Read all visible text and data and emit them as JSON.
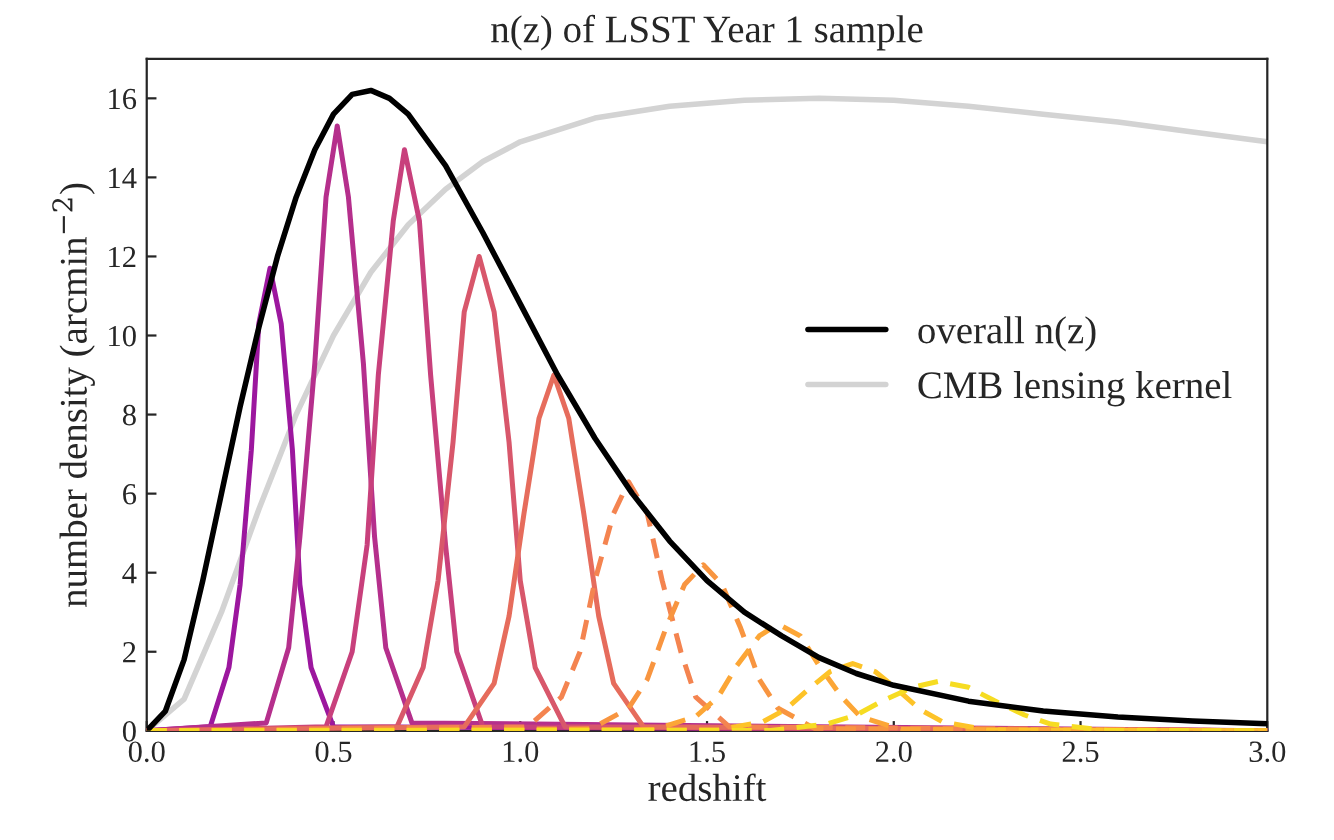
{
  "chart_data": {
    "type": "line",
    "title": "n(z) of LSST Year 1 sample",
    "xlabel": "redshift",
    "ylabel": "number density (arcmin$^{−2}$)",
    "xlim": [
      0.0,
      3.0
    ],
    "ylim": [
      0,
      17
    ],
    "xticks": [
      {
        "value": 0,
        "label": "0.0"
      },
      0.5,
      {
        "value": 1,
        "label": "1.0"
      },
      1.5,
      {
        "value": 2,
        "label": "2.0"
      },
      2.5,
      {
        "value": 3,
        "label": "3.0"
      }
    ],
    "yticks": [
      0,
      2,
      4,
      6,
      8,
      10,
      12,
      14,
      16
    ],
    "grid": false,
    "legend": "right",
    "marker": "none",
    "series": [
      {
        "color": "#9c179e",
        "line_style": "solid",
        "x": [
          0,
          0.17,
          0.22,
          0.25,
          0.28,
          0.3,
          0.33,
          0.36,
          0.39,
          0.41,
          0.44,
          0.5,
          3.0
        ],
        "values": [
          0,
          0.1,
          1.6,
          3.7,
          7.1,
          10.3,
          11.7,
          10.3,
          7.1,
          3.7,
          1.6,
          0.1,
          0
        ]
      },
      {
        "color": "#b52f8c",
        "line_style": "solid",
        "x": [
          0,
          0.32,
          0.38,
          0.41,
          0.45,
          0.48,
          0.51,
          0.54,
          0.58,
          0.61,
          0.64,
          0.71,
          3.0
        ],
        "values": [
          0,
          0.2,
          2.1,
          4.9,
          9.3,
          13.5,
          15.3,
          13.5,
          9.3,
          4.9,
          2.1,
          0.2,
          0
        ]
      },
      {
        "color": "#c8407c",
        "line_style": "solid",
        "x": [
          0,
          0.48,
          0.55,
          0.59,
          0.62,
          0.66,
          0.69,
          0.73,
          0.76,
          0.8,
          0.83,
          0.9,
          3.0
        ],
        "values": [
          0,
          0.1,
          2.0,
          4.7,
          9.0,
          12.9,
          14.7,
          12.9,
          9.0,
          4.7,
          2.0,
          0.1,
          0
        ]
      },
      {
        "color": "#d8576b",
        "line_style": "solid",
        "x": [
          0,
          0.67,
          0.74,
          0.78,
          0.82,
          0.85,
          0.89,
          0.93,
          0.97,
          1.0,
          1.04,
          1.12,
          3.0
        ],
        "values": [
          0,
          0.1,
          1.6,
          3.8,
          7.3,
          10.6,
          12.0,
          10.6,
          7.3,
          3.8,
          1.6,
          0.1,
          0
        ]
      },
      {
        "color": "#e66c5c",
        "line_style": "solid",
        "x": [
          0,
          0.85,
          0.93,
          0.97,
          1.01,
          1.05,
          1.09,
          1.13,
          1.17,
          1.21,
          1.25,
          1.33,
          3.0
        ],
        "values": [
          0,
          0.1,
          1.2,
          2.9,
          5.5,
          7.9,
          9.0,
          7.9,
          5.5,
          2.9,
          1.2,
          0.1,
          0
        ]
      },
      {
        "color": "#f48450",
        "line_style": "dashed",
        "x": [
          0,
          1.02,
          1.11,
          1.16,
          1.2,
          1.25,
          1.29,
          1.34,
          1.38,
          1.43,
          1.47,
          1.56,
          3.0
        ],
        "values": [
          0,
          0.1,
          0.85,
          2.0,
          3.8,
          5.5,
          6.3,
          5.5,
          3.8,
          2.0,
          0.85,
          0.1,
          0
        ]
      },
      {
        "color": "#f89540",
        "line_style": "dashed",
        "x": [
          0,
          1.19,
          1.29,
          1.34,
          1.39,
          1.44,
          1.49,
          1.54,
          1.59,
          1.64,
          1.69,
          1.79,
          3.0
        ],
        "values": [
          0,
          0.05,
          0.57,
          1.3,
          2.6,
          3.7,
          4.2,
          3.7,
          2.6,
          1.3,
          0.57,
          0.05,
          0
        ]
      },
      {
        "color": "#fca636",
        "line_style": "dashed",
        "x": [
          0,
          1.36,
          1.47,
          1.53,
          1.58,
          1.64,
          1.69,
          1.75,
          1.8,
          1.86,
          1.91,
          2.02,
          3.0
        ],
        "values": [
          0,
          0.03,
          0.36,
          0.86,
          1.65,
          2.4,
          2.7,
          2.4,
          1.65,
          0.86,
          0.36,
          0.03,
          0
        ]
      },
      {
        "color": "#fdc328",
        "line_style": "dashed",
        "x": [
          0,
          1.53,
          1.65,
          1.71,
          1.77,
          1.83,
          1.89,
          1.95,
          2.01,
          2.07,
          2.13,
          2.25,
          3.0
        ],
        "values": [
          0,
          0.02,
          0.23,
          0.54,
          1.04,
          1.5,
          1.7,
          1.5,
          1.04,
          0.54,
          0.23,
          0.02,
          0
        ]
      },
      {
        "color": "#f6dc22",
        "line_style": "dashed",
        "x": [
          0,
          1.67,
          1.82,
          1.9,
          1.97,
          2.05,
          2.12,
          2.2,
          2.27,
          2.35,
          2.42,
          2.57,
          3.0
        ],
        "values": [
          0,
          0.01,
          0.17,
          0.4,
          0.76,
          1.1,
          1.25,
          1.1,
          0.76,
          0.4,
          0.17,
          0.01,
          0
        ]
      },
      {
        "name": "overall n(z)",
        "color": "#000000",
        "line_style": "solid",
        "x": [
          0,
          0.05,
          0.1,
          0.15,
          0.2,
          0.25,
          0.3,
          0.35,
          0.4,
          0.45,
          0.5,
          0.55,
          0.6,
          0.65,
          0.7,
          0.8,
          0.9,
          1.0,
          1.1,
          1.2,
          1.3,
          1.4,
          1.5,
          1.6,
          1.7,
          1.8,
          1.9,
          2.0,
          2.2,
          2.4,
          2.6,
          2.8,
          3.0
        ],
        "values": [
          0,
          0.5,
          1.8,
          3.8,
          6.0,
          8.2,
          10.2,
          12.0,
          13.5,
          14.7,
          15.6,
          16.1,
          16.2,
          16.0,
          15.6,
          14.3,
          12.6,
          10.8,
          9.0,
          7.4,
          6.0,
          4.8,
          3.8,
          3.0,
          2.4,
          1.85,
          1.45,
          1.15,
          0.75,
          0.5,
          0.35,
          0.25,
          0.18
        ]
      },
      {
        "name": "CMB lensing kernel",
        "color": "#d3d3d3",
        "line_style": "solid",
        "x": [
          0,
          0.1,
          0.2,
          0.3,
          0.4,
          0.5,
          0.6,
          0.7,
          0.8,
          0.9,
          1.0,
          1.2,
          1.4,
          1.6,
          1.8,
          2.0,
          2.2,
          2.4,
          2.6,
          2.8,
          3.0
        ],
        "values": [
          0,
          0.8,
          3.0,
          5.6,
          8.0,
          10.0,
          11.6,
          12.8,
          13.7,
          14.4,
          14.9,
          15.5,
          15.8,
          15.95,
          16.0,
          15.95,
          15.8,
          15.6,
          15.4,
          15.15,
          14.9
        ]
      }
    ]
  }
}
